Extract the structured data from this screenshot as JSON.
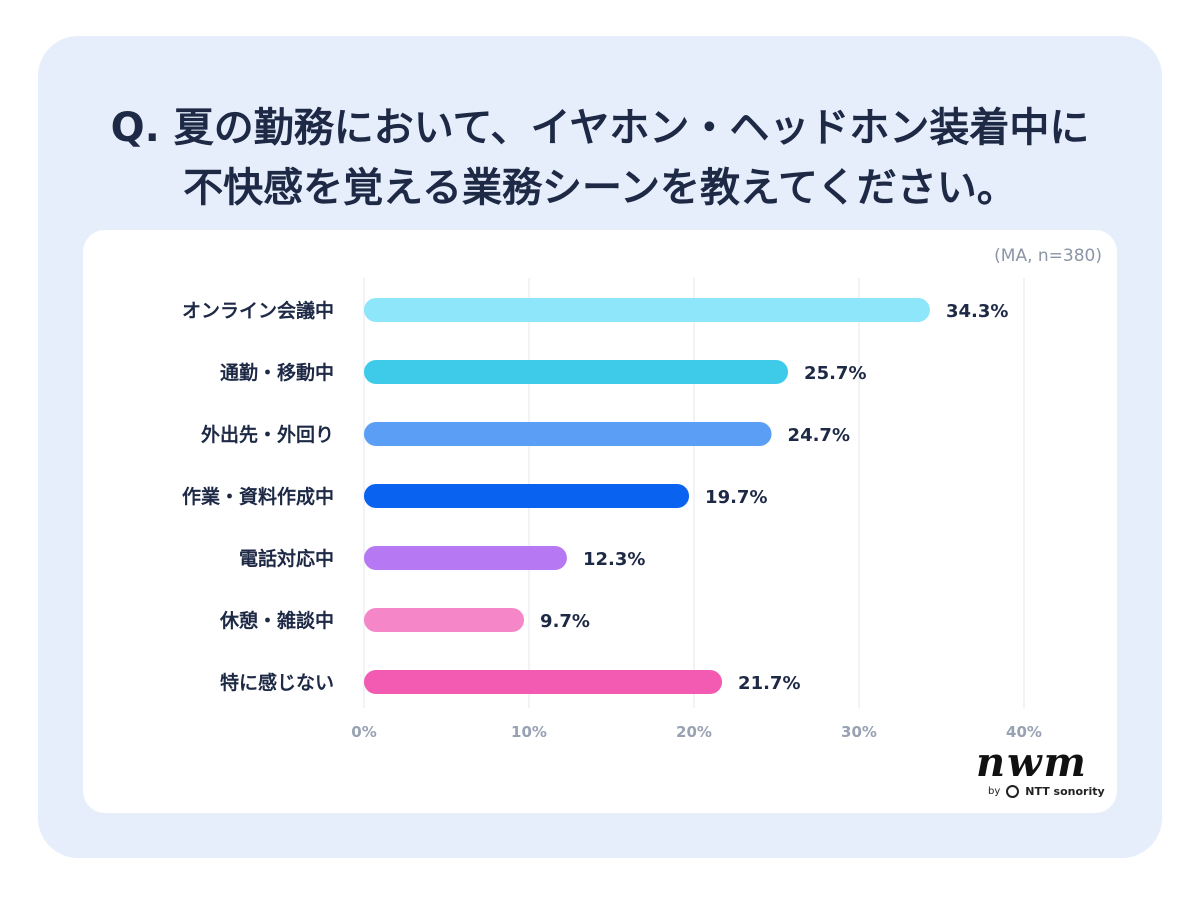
{
  "title": {
    "line1": "Q. 夏の勤務において、イヤホン・ヘッドホン装着中に",
    "line2": "不快感を覚える業務シーンを教えてください。"
  },
  "note": "(MA, n=380)",
  "logo": {
    "word": "nwm",
    "by": "by",
    "brand": "NTT sonority"
  },
  "chart_data": {
    "type": "bar",
    "orientation": "horizontal",
    "categories": [
      "オンライン会議中",
      "通勤・移動中",
      "外出先・外回り",
      "作業・資料作成中",
      "電話対応中",
      "休憩・雑談中",
      "特に感じない"
    ],
    "values": [
      34.3,
      25.7,
      24.7,
      19.7,
      12.3,
      9.7,
      21.7
    ],
    "value_labels": [
      "34.3%",
      "25.7%",
      "24.7%",
      "19.7%",
      "12.3%",
      "9.7%",
      "21.7%"
    ],
    "colors": [
      "#8ee6fb",
      "#3ecbea",
      "#5b9ef5",
      "#0a63f0",
      "#b778f3",
      "#f586c8",
      "#f25bb1"
    ],
    "xlim": [
      0,
      40
    ],
    "xticks": [
      "0%",
      "10%",
      "20%",
      "30%",
      "40%"
    ],
    "grid": true
  }
}
